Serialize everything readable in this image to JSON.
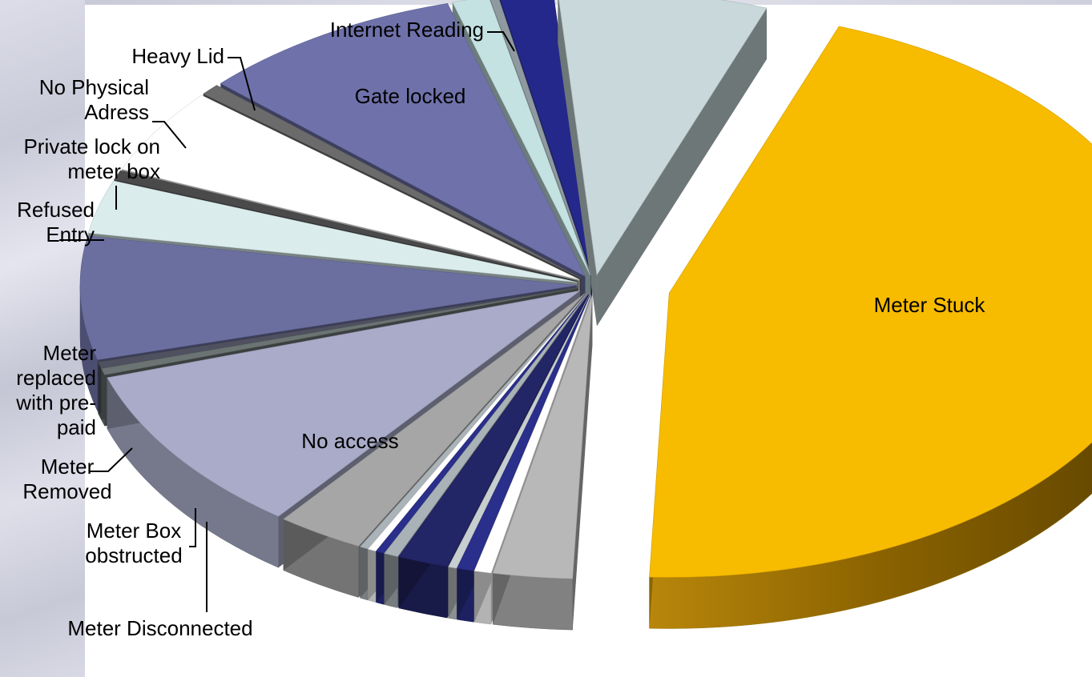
{
  "chart_data": {
    "type": "pie",
    "style": "3d-exploded",
    "title": "",
    "legend": "none",
    "slices": [
      {
        "label": "Meter Stuck",
        "value": 49.0,
        "color": "#f7bb00"
      },
      {
        "label": "",
        "value": 2.8,
        "color": "#b8b8b8"
      },
      {
        "label": "",
        "value": 0.6,
        "color": "#ffffff"
      },
      {
        "label": "",
        "value": 0.6,
        "color": "#2a2f8c"
      },
      {
        "label": "",
        "value": 0.3,
        "color": "#c7ced0"
      },
      {
        "label": "",
        "value": 1.8,
        "color": "#222566"
      },
      {
        "label": "",
        "value": 0.5,
        "color": "#a9b2b6"
      },
      {
        "label": "",
        "value": 0.3,
        "color": "#2a2f8c"
      },
      {
        "label": "",
        "value": 0.3,
        "color": "#ffffff"
      },
      {
        "label": "",
        "value": 0.3,
        "color": "#aab3b8"
      },
      {
        "label": "Internet Reading",
        "value": 3.1,
        "color": "#a6a6a6"
      },
      {
        "label": "Gate locked",
        "value": 10.5,
        "color": "#a9abc8"
      },
      {
        "label": "Heavy Lid",
        "value": 0.4,
        "color": "#6b7373"
      },
      {
        "label": "No Physical Adress",
        "value": 0.4,
        "color": "#4f5160"
      },
      {
        "label": "Private lock on meter box",
        "value": 7.6,
        "color": "#6b6fa0"
      },
      {
        "label": "",
        "value": 3.3,
        "color": "#dbeced"
      },
      {
        "label": "Refused Entry",
        "value": 0.6,
        "color": "#4a4a4a"
      },
      {
        "label": "",
        "value": 5.3,
        "color": "#ffffff"
      },
      {
        "label": "Meter replaced with pre-paid",
        "value": 0.7,
        "color": "#6b6b6b"
      },
      {
        "label": "Meter Removed",
        "value": 9.4,
        "color": "#6f72aa"
      },
      {
        "label": "Meter Box obstructed",
        "value": 1.3,
        "color": "#c5e2e3"
      },
      {
        "label": "",
        "value": 0.3,
        "color": "#8f9aa0"
      },
      {
        "label": "Meter Disconnected",
        "value": 1.9,
        "color": "#24288a"
      },
      {
        "label": "No access",
        "value": 7.4,
        "color": "#c8d8db"
      }
    ],
    "labels": [
      {
        "label": "Meter Stuck",
        "lines": [
          "Meter Stuck"
        ]
      },
      {
        "label": "No access",
        "lines": [
          "No access"
        ]
      },
      {
        "label": "Gate locked",
        "lines": [
          "Gate locked"
        ]
      },
      {
        "label": "Internet Reading",
        "lines": [
          "Internet Reading"
        ]
      },
      {
        "label": "Heavy Lid",
        "lines": [
          "Heavy Lid"
        ]
      },
      {
        "label": "No Physical Adress",
        "lines": [
          "No Physical",
          "Adress"
        ]
      },
      {
        "label": "Private lock on meter box",
        "lines": [
          "Private lock on",
          "meter box"
        ]
      },
      {
        "label": "Refused Entry",
        "lines": [
          "Refused",
          "Entry"
        ]
      },
      {
        "label": "Meter replaced with pre-paid",
        "lines": [
          "Meter",
          "replaced",
          "with pre-",
          "paid"
        ]
      },
      {
        "label": "Meter Removed",
        "lines": [
          "Meter",
          "Removed"
        ]
      },
      {
        "label": "Meter Box obstructed",
        "lines": [
          "Meter Box",
          "obstructed"
        ]
      },
      {
        "label": "Meter Disconnected",
        "lines": [
          "Meter Disconnected"
        ]
      }
    ]
  }
}
